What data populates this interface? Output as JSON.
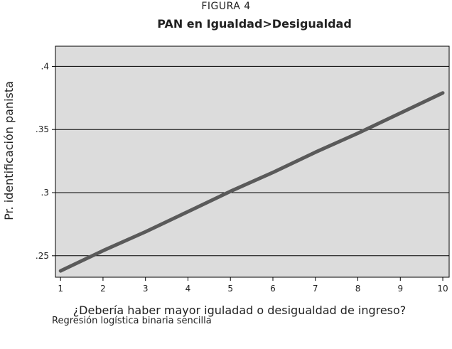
{
  "header": {
    "figure_label": "FIGURA 4",
    "title": "PAN en Igualdad>Desigualdad"
  },
  "footnote": "Regresión logística binaria sencilla",
  "colors": {
    "plot_background": "#dcdcdc",
    "line": "#5a5a5a",
    "grid": "#000000",
    "text": "#222222"
  },
  "chart_data": {
    "type": "line",
    "title": "PAN en Igualdad>Desigualdad",
    "xlabel": "¿Debería haber mayor iguladad o desigualdad de ingreso?",
    "ylabel": "Pr. identificación panista",
    "xlim": [
      0.88,
      10.15
    ],
    "ylim": [
      0.233,
      0.416
    ],
    "x_ticks": [
      1,
      2,
      3,
      4,
      5,
      6,
      7,
      8,
      9,
      10
    ],
    "x_tick_labels": [
      "1",
      "2",
      "3",
      "4",
      "5",
      "6",
      "7",
      "8",
      "9",
      "10"
    ],
    "y_ticks": [
      0.25,
      0.3,
      0.35,
      0.4
    ],
    "y_tick_labels": [
      ".25",
      ".3",
      ".35",
      ".4"
    ],
    "grid": "horizontal",
    "series": [
      {
        "x": [
          1,
          2,
          3,
          4,
          5,
          6,
          7,
          8,
          9,
          10
        ],
        "y": [
          0.238,
          0.254,
          0.269,
          0.285,
          0.301,
          0.316,
          0.332,
          0.347,
          0.363,
          0.379
        ]
      }
    ]
  }
}
